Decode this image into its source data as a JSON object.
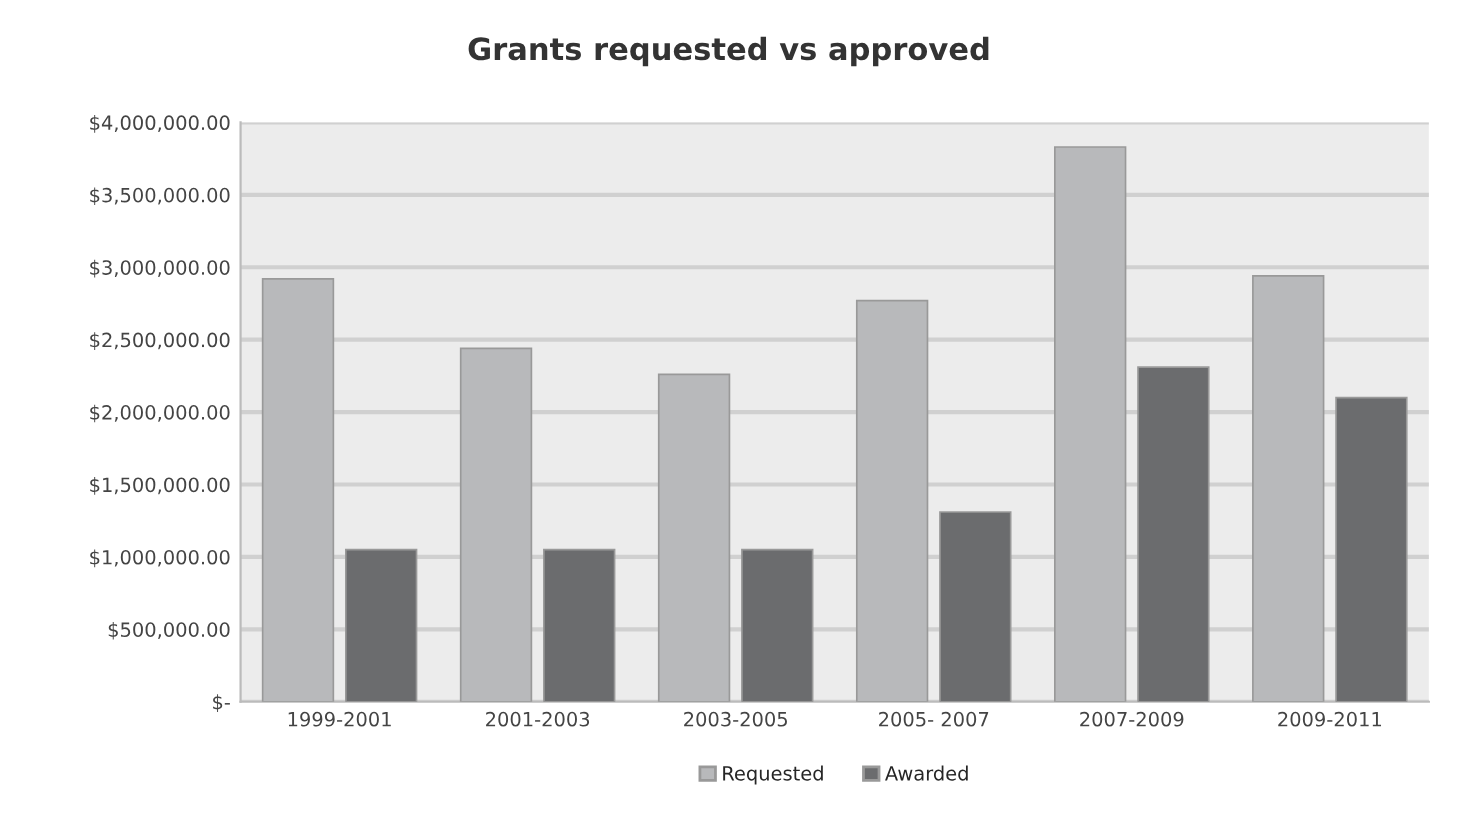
{
  "chart_data": {
    "type": "bar",
    "title": "Grants requested vs approved",
    "categories": [
      "1999-2001",
      "2001-2003",
      "2003-2005",
      "2005- 2007",
      "2007-2009",
      "2009-2011"
    ],
    "series": [
      {
        "name": "Requested",
        "color": "#b8b9bb",
        "values": [
          2920000,
          2440000,
          2260000,
          2770000,
          3830000,
          2940000
        ]
      },
      {
        "name": "Awarded",
        "color": "#6b6c6e",
        "values": [
          1050000,
          1050000,
          1050000,
          1310000,
          2310000,
          2100000
        ]
      }
    ],
    "ylim": [
      0,
      4000000
    ],
    "yticks": [
      {
        "value": 0,
        "label": "$-"
      },
      {
        "value": 500000,
        "label": "$500,000.00"
      },
      {
        "value": 1000000,
        "label": "$1,000,000.00"
      },
      {
        "value": 1500000,
        "label": "$1,500,000.00"
      },
      {
        "value": 2000000,
        "label": "$2,000,000.00"
      },
      {
        "value": 2500000,
        "label": "$2,500,000.00"
      },
      {
        "value": 3000000,
        "label": "$3,000,000.00"
      },
      {
        "value": 3500000,
        "label": "$3,500,000.00"
      },
      {
        "value": 4000000,
        "label": "$4,000,000.00"
      }
    ],
    "grid": "y",
    "legend": "bottom"
  }
}
